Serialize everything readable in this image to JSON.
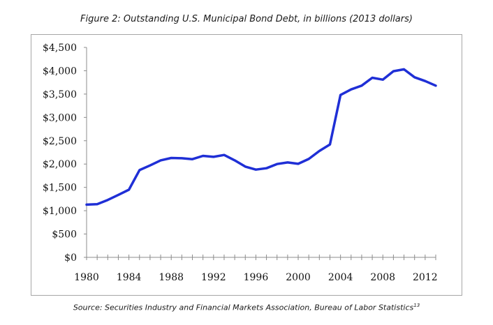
{
  "chart_data": {
    "type": "line",
    "title": "Figure 2: Outstanding U.S. Municipal Bond Debt, in billions (2013 dollars)",
    "source": "Source: Securities Industry and Financial Markets Association, Bureau of Labor Statistics",
    "source_note": "13",
    "xlim": [
      1980,
      2013
    ],
    "ylim": [
      0,
      4500
    ],
    "x_ticks": [
      1980,
      1984,
      1988,
      1992,
      1996,
      2000,
      2004,
      2008,
      2012
    ],
    "x_tick_labels": [
      "1980",
      "1984",
      "1988",
      "1992",
      "1996",
      "2000",
      "2004",
      "2008",
      "2012"
    ],
    "y_ticks": [
      0,
      500,
      1000,
      1500,
      2000,
      2500,
      3000,
      3500,
      4000,
      4500
    ],
    "y_tick_labels": [
      "$0",
      "$500",
      "$1,000",
      "$1,500",
      "$2,000",
      "$2,500",
      "$3,000",
      "$3,500",
      "$4,000",
      "$4,500"
    ],
    "grid": false,
    "legend": "none",
    "series": [
      {
        "color": "#1f2fd6",
        "x": [
          1980,
          1981,
          1982,
          1983,
          1984,
          1985,
          1986,
          1987,
          1988,
          1989,
          1990,
          1991,
          1992,
          1993,
          1994,
          1995,
          1996,
          1997,
          1998,
          1999,
          2000,
          2001,
          2002,
          2003,
          2004,
          2005,
          2006,
          2007,
          2008,
          2009,
          2010,
          2011,
          2012,
          2013
        ],
        "values": [
          1130,
          1140,
          1230,
          1340,
          1450,
          1870,
          1970,
          2080,
          2130,
          2125,
          2105,
          2175,
          2155,
          2195,
          2080,
          1945,
          1880,
          1910,
          2000,
          2035,
          2005,
          2110,
          2280,
          2420,
          3480,
          3600,
          3680,
          3850,
          3810,
          3990,
          4030,
          3860,
          3780,
          3680
        ]
      }
    ]
  }
}
